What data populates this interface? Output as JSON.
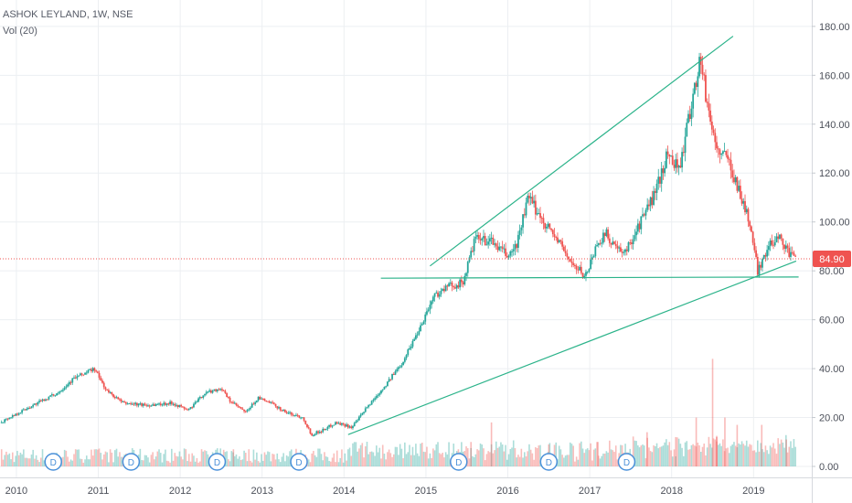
{
  "legend": {
    "symbol": "ASHOK LEYLAND, 1W, NSE",
    "volume": "Vol (20)"
  },
  "price_tag": "84.90",
  "colors": {
    "up": "#26a69a",
    "down": "#ef5350",
    "trendline": "#2bb38a",
    "grid": "#eceff2",
    "price_tag": "#ef5350"
  },
  "dividend_marker": "D",
  "chart_data": {
    "type": "candlestick",
    "x_ticks": [
      "2010",
      "2011",
      "2012",
      "2013",
      "2014",
      "2015",
      "2016",
      "2017",
      "2018",
      "2019"
    ],
    "y_ticks": [
      "0.00",
      "20.00",
      "40.00",
      "60.00",
      "80.00",
      "100.00",
      "120.00",
      "140.00",
      "160.00",
      "180.00"
    ],
    "ylim": [
      0,
      180
    ],
    "xlim": [
      2009.8,
      2019.55
    ],
    "last_price": 84.9,
    "price_path": [
      [
        2009.8,
        18
      ],
      [
        2010.2,
        25
      ],
      [
        2010.5,
        30
      ],
      [
        2010.7,
        36
      ],
      [
        2010.95,
        40
      ],
      [
        2011.1,
        31
      ],
      [
        2011.3,
        26
      ],
      [
        2011.6,
        25
      ],
      [
        2011.9,
        26
      ],
      [
        2012.1,
        23
      ],
      [
        2012.3,
        30
      ],
      [
        2012.5,
        32
      ],
      [
        2012.6,
        27
      ],
      [
        2012.8,
        22
      ],
      [
        2012.95,
        28
      ],
      [
        2013.1,
        26
      ],
      [
        2013.3,
        22
      ],
      [
        2013.5,
        20
      ],
      [
        2013.6,
        13
      ],
      [
        2013.75,
        15
      ],
      [
        2013.9,
        18
      ],
      [
        2014.1,
        16
      ],
      [
        2014.3,
        25
      ],
      [
        2014.5,
        33
      ],
      [
        2014.7,
        42
      ],
      [
        2014.9,
        55
      ],
      [
        2015.1,
        70
      ],
      [
        2015.3,
        74
      ],
      [
        2015.45,
        75
      ],
      [
        2015.6,
        93
      ],
      [
        2015.8,
        92
      ],
      [
        2016.0,
        86
      ],
      [
        2016.1,
        90
      ],
      [
        2016.25,
        110
      ],
      [
        2016.4,
        102
      ],
      [
        2016.6,
        93
      ],
      [
        2016.8,
        82
      ],
      [
        2016.95,
        78
      ],
      [
        2017.1,
        92
      ],
      [
        2017.2,
        95
      ],
      [
        2017.4,
        86
      ],
      [
        2017.5,
        92
      ],
      [
        2017.65,
        102
      ],
      [
        2017.8,
        112
      ],
      [
        2017.95,
        128
      ],
      [
        2018.1,
        122
      ],
      [
        2018.25,
        150
      ],
      [
        2018.35,
        167
      ],
      [
        2018.45,
        145
      ],
      [
        2018.55,
        130
      ],
      [
        2018.7,
        125
      ],
      [
        2018.85,
        110
      ],
      [
        2018.95,
        100
      ],
      [
        2019.05,
        80
      ],
      [
        2019.15,
        88
      ],
      [
        2019.3,
        95
      ],
      [
        2019.45,
        86
      ],
      [
        2019.52,
        84.9
      ]
    ],
    "trendlines": [
      {
        "from": [
          2015.05,
          82
        ],
        "to": [
          2018.75,
          176
        ]
      },
      {
        "from": [
          2014.45,
          77
        ],
        "to": [
          2019.55,
          77.5
        ]
      },
      {
        "from": [
          2014.05,
          13
        ],
        "to": [
          2019.52,
          84
        ]
      }
    ],
    "volume_spikes": [
      [
        2012.65,
        7
      ],
      [
        2015.55,
        10
      ],
      [
        2015.8,
        18
      ],
      [
        2016.5,
        9
      ],
      [
        2017.1,
        10
      ],
      [
        2017.7,
        14
      ],
      [
        2018.05,
        12
      ],
      [
        2018.3,
        20
      ],
      [
        2018.55,
        12
      ],
      [
        2018.55,
        12.5
      ],
      [
        2018.5,
        44
      ],
      [
        2018.65,
        20
      ],
      [
        2018.8,
        17
      ],
      [
        2019.1,
        17
      ],
      [
        2019.4,
        11
      ]
    ],
    "dividend_dates": [
      2010.45,
      2011.4,
      2012.45,
      2013.45,
      2015.4,
      2016.5,
      2017.45
    ]
  }
}
